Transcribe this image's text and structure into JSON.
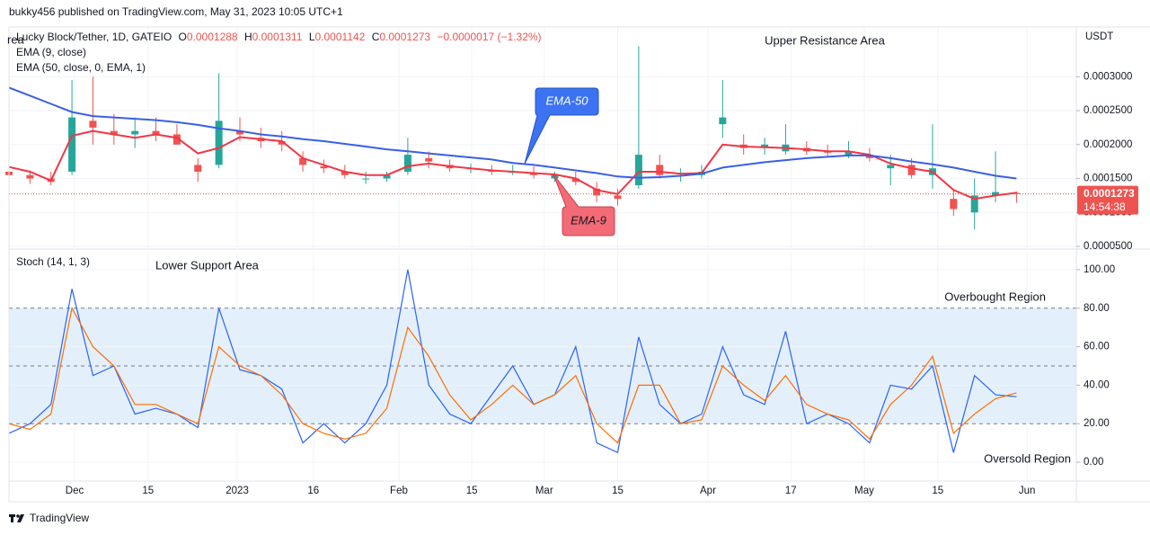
{
  "publisher": "bukky456 published on TradingView.com, May 31, 2023 10:05 UTC+1",
  "brand": "TradingView",
  "chart_data": [
    {
      "type": "candlestick",
      "symbol": "Lucky Block/Tether, 1D, GATEIO",
      "ohlc_names": [
        "O",
        "H",
        "L",
        "C"
      ],
      "ohlc_values": [
        0.0001288,
        0.0001311,
        0.0001142,
        0.0001273
      ],
      "change": "−0.0000017 (−1.32%)",
      "currency": "USDT",
      "x": [
        0,
        4,
        8,
        12,
        16,
        20,
        24,
        28,
        32,
        36,
        40,
        44,
        48,
        52,
        56,
        60,
        64,
        68,
        72,
        76,
        80,
        84,
        88,
        92,
        96,
        100,
        104,
        108,
        112,
        116,
        120,
        124,
        128,
        132,
        136,
        140,
        144,
        148,
        152,
        156,
        160,
        164,
        168,
        172,
        176,
        180,
        184,
        188,
        192
      ],
      "open": [
        0.00016,
        0.000155,
        0.00015,
        0.00016,
        0.000235,
        0.00022,
        0.000215,
        0.00022,
        0.000215,
        0.00017,
        0.00017,
        0.00022,
        0.00021,
        0.000205,
        0.00018,
        0.000168,
        0.00016,
        0.00015,
        0.00015,
        0.00016,
        0.00018,
        0.00017,
        0.000165,
        0.000162,
        0.00016,
        0.000158,
        0.00015,
        0.00015,
        0.000135,
        0.000125,
        0.00014,
        0.00017,
        0.000155,
        0.000155,
        0.00023,
        0.0002,
        0.000195,
        0.00019,
        0.000195,
        0.00019,
        0.000185,
        0.000185,
        0.000165,
        0.00017,
        0.000155,
        0.00012,
        0.0001,
        0.000125,
        0.0001288
      ],
      "high": [
        0.00017,
        0.000162,
        0.00016,
        0.000295,
        0.0003,
        0.000245,
        0.00024,
        0.00024,
        0.00023,
        0.00018,
        0.000305,
        0.00024,
        0.000225,
        0.00022,
        0.00019,
        0.000178,
        0.00017,
        0.00016,
        0.00016,
        0.00021,
        0.00019,
        0.000178,
        0.000172,
        0.00017,
        0.00017,
        0.000168,
        0.00016,
        0.00016,
        0.000145,
        0.000135,
        0.000345,
        0.000185,
        0.000165,
        0.00017,
        0.000295,
        0.000215,
        0.00021,
        0.00023,
        0.000205,
        0.0002,
        0.000205,
        0.000195,
        0.000185,
        0.00018,
        0.00023,
        0.000135,
        0.00015,
        0.00019,
        0.0001311
      ],
      "low": [
        0.00015,
        0.000142,
        0.00014,
        0.000155,
        0.0002,
        0.0002,
        0.000195,
        0.000205,
        0.0002,
        0.000145,
        0.000165,
        0.000205,
        0.000195,
        0.00019,
        0.00016,
        0.000158,
        0.00015,
        0.000142,
        0.000145,
        0.000155,
        0.000165,
        0.00016,
        0.000158,
        0.000155,
        0.000155,
        0.00015,
        0.000145,
        0.00014,
        0.000115,
        0.00011,
        0.000135,
        0.00015,
        0.000145,
        0.00015,
        0.00021,
        0.000185,
        0.000185,
        0.000185,
        0.000185,
        0.000182,
        0.00018,
        0.000175,
        0.00014,
        0.00015,
        0.000135,
        9.5e-05,
        7.5e-05,
        0.000115,
        0.0001142
      ],
      "close": [
        0.000155,
        0.00015,
        0.000145,
        0.00024,
        0.000225,
        0.000215,
        0.00022,
        0.000215,
        0.0002,
        0.00016,
        0.000235,
        0.000215,
        0.000205,
        0.0002,
        0.00017,
        0.000165,
        0.000155,
        0.00015,
        0.000155,
        0.000185,
        0.000175,
        0.000165,
        0.000165,
        0.00016,
        0.00016,
        0.000155,
        0.000155,
        0.000145,
        0.000125,
        0.00012,
        0.000185,
        0.000155,
        0.000155,
        0.00016,
        0.00024,
        0.000195,
        0.0002,
        0.0002,
        0.00019,
        0.000188,
        0.00019,
        0.00018,
        0.00017,
        0.000155,
        0.000165,
        0.000105,
        0.000125,
        0.00013,
        0.0001273
      ],
      "up_color": "#26a69a",
      "down_color": "#ef5350",
      "series": [
        {
          "name": "EMA (9, close)",
          "color": "#f23645",
          "values": [
            0.000167,
            0.00016,
            0.000147,
            0.000213,
            0.00022,
            0.000215,
            0.00021,
            0.000215,
            0.00021,
            0.000187,
            0.000195,
            0.000211,
            0.000208,
            0.000205,
            0.00018,
            0.00017,
            0.00016,
            0.000155,
            0.000155,
            0.000168,
            0.000172,
            0.000168,
            0.000165,
            0.000162,
            0.00016,
            0.000158,
            0.000156,
            0.00015,
            0.000133,
            0.000127,
            0.00016,
            0.00016,
            0.000157,
            0.000158,
            0.0002,
            0.000197,
            0.000196,
            0.000195,
            0.000193,
            0.00019,
            0.00019,
            0.000185,
            0.000172,
            0.000165,
            0.00016,
            0.000133,
            0.00012,
            0.000125,
            0.000129
          ]
        },
        {
          "name": "EMA (50, close, 0, EMA, 1)",
          "color": "#3a5fe5",
          "values": [
            0.000284,
            0.000272,
            0.00026,
            0.000248,
            0.000242,
            0.00024,
            0.000238,
            0.000236,
            0.000233,
            0.000229,
            0.000224,
            0.00022,
            0.000215,
            0.000212,
            0.000208,
            0.000205,
            0.000201,
            0.000197,
            0.000193,
            0.00019,
            0.000187,
            0.000184,
            0.000181,
            0.000178,
            0.000173,
            0.00017,
            0.000166,
            0.000162,
            0.000158,
            0.000153,
            0.000151,
            0.000152,
            0.000154,
            0.000157,
            0.000166,
            0.00017,
            0.000174,
            0.000177,
            0.00018,
            0.000182,
            0.000184,
            0.000184,
            0.00018,
            0.000175,
            0.000171,
            0.000166,
            0.00016,
            0.000154,
            0.00015
          ]
        }
      ],
      "ylim": [
        4.6e-05,
        0.0003733
      ],
      "yticks": [
        {
          "value": 5e-05,
          "label": "0.0000500"
        },
        {
          "value": 0.0001,
          "label": "0.0001000"
        },
        {
          "value": 0.00015,
          "label": "0.0001500"
        },
        {
          "value": 0.0002,
          "label": "0.0002000"
        },
        {
          "value": 0.00025,
          "label": "0.0002500"
        },
        {
          "value": 0.0003,
          "label": "0.0003000"
        }
      ],
      "xlim": [
        0,
        203.4
      ],
      "last_price": 0.0001273,
      "countdown": "14:54:38",
      "annotations": [
        "rea",
        "Upper Resistance Area",
        "EMA-50",
        "EMA-9"
      ],
      "grid": true
    },
    {
      "type": "line",
      "title": "Stoch (14, 1, 3)",
      "x": [
        0,
        4,
        8,
        12,
        16,
        20,
        24,
        28,
        32,
        36,
        40,
        44,
        48,
        52,
        56,
        60,
        64,
        68,
        72,
        76,
        80,
        84,
        88,
        92,
        96,
        100,
        104,
        108,
        112,
        116,
        120,
        124,
        128,
        132,
        136,
        140,
        144,
        148,
        152,
        156,
        160,
        164,
        168,
        172,
        176,
        180,
        184,
        188,
        192
      ],
      "series": [
        {
          "color": "#2962ff",
          "values": [
            15,
            20,
            30,
            90,
            45,
            50,
            25,
            28,
            25,
            18,
            80,
            48,
            45,
            38,
            10,
            20,
            10,
            20,
            40,
            100,
            40,
            25,
            20,
            35,
            50,
            30,
            35,
            60,
            10,
            5,
            65,
            30,
            20,
            25,
            60,
            35,
            30,
            68,
            20,
            25,
            20,
            10,
            40,
            38,
            50,
            5,
            45,
            35,
            34
          ]
        },
        {
          "color": "#ff6d00",
          "values": [
            20,
            17,
            25,
            80,
            60,
            50,
            30,
            30,
            25,
            20,
            60,
            50,
            45,
            35,
            20,
            15,
            12,
            15,
            28,
            70,
            55,
            35,
            22,
            30,
            40,
            30,
            35,
            45,
            20,
            10,
            40,
            40,
            20,
            22,
            50,
            40,
            32,
            45,
            30,
            25,
            22,
            12,
            30,
            40,
            55,
            15,
            25,
            33,
            36
          ]
        }
      ],
      "bands": [
        20,
        80
      ],
      "midline": 50,
      "band_color": "#e3f0fb",
      "ylim": [
        -9.8,
        109.3
      ],
      "yticks": [
        {
          "value": 0,
          "label": "0.00"
        },
        {
          "value": 20,
          "label": "20.00"
        },
        {
          "value": 40,
          "label": "40.00"
        },
        {
          "value": 60,
          "label": "60.00"
        },
        {
          "value": 80,
          "label": "80.00"
        },
        {
          "value": 100,
          "label": "100.00"
        }
      ],
      "xlim": [
        0,
        203.4
      ],
      "xticks": [
        {
          "value": 12.5,
          "label": "Dec"
        },
        {
          "value": 26.5,
          "label": "15"
        },
        {
          "value": 43.5,
          "label": "2023"
        },
        {
          "value": 58,
          "label": "16"
        },
        {
          "value": 74.3,
          "label": "Feb"
        },
        {
          "value": 88.2,
          "label": "15"
        },
        {
          "value": 102,
          "label": "Mar"
        },
        {
          "value": 116,
          "label": "15"
        },
        {
          "value": 133.2,
          "label": "Apr"
        },
        {
          "value": 149,
          "label": "17"
        },
        {
          "value": 163,
          "label": "May"
        },
        {
          "value": 177,
          "label": "15"
        },
        {
          "value": 194,
          "label": "Jun"
        }
      ],
      "annotations": [
        "Lower Support Area",
        "Overbought Region",
        "Oversold Region"
      ],
      "grid": true
    }
  ]
}
